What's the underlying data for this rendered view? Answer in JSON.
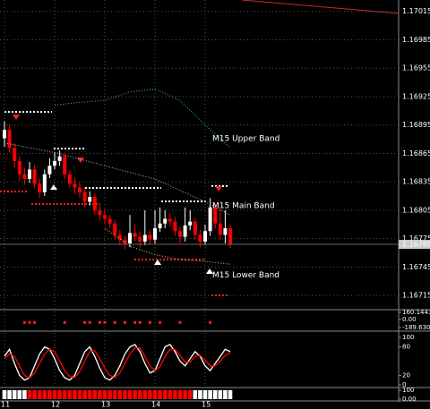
{
  "chart_data": [
    {
      "type": "candlestick",
      "categories": [
        "11",
        null,
        null,
        null,
        null,
        null,
        null,
        null,
        null,
        null,
        "12",
        null,
        null,
        null,
        null,
        null,
        null,
        null,
        null,
        null,
        "13",
        null,
        null,
        null,
        null,
        null,
        null,
        null,
        null,
        null,
        "14",
        null,
        null,
        null,
        null,
        null,
        null,
        null,
        null,
        null,
        "15",
        null,
        null,
        null,
        null,
        null
      ],
      "open": [
        1.16881,
        1.1689,
        1.16871,
        1.16857,
        1.16843,
        1.16838,
        1.16848,
        1.16833,
        1.16824,
        1.16843,
        1.16852,
        1.16857,
        1.16862,
        1.16843,
        1.16833,
        1.16829,
        1.16824,
        1.16814,
        1.16819,
        1.16805,
        1.168,
        1.16796,
        1.16791,
        1.16779,
        1.16774,
        1.1677,
        1.16781,
        1.16777,
        1.16772,
        1.16779,
        1.16774,
        1.16786,
        1.16791,
        1.16796,
        1.16793,
        1.16783,
        1.16777,
        1.16789,
        1.16793,
        1.16779,
        1.16772,
        1.16783,
        1.16808,
        1.16791,
        1.16779,
        1.16786
      ],
      "high": [
        1.16899,
        1.16896,
        1.16876,
        1.16862,
        1.1685,
        1.16856,
        1.16853,
        1.16838,
        1.16848,
        1.1686,
        1.16866,
        1.16868,
        1.16866,
        1.16847,
        1.1684,
        1.16834,
        1.16829,
        1.16825,
        1.16823,
        1.1681,
        1.16806,
        1.168,
        1.16795,
        1.16784,
        1.16778,
        1.168,
        1.1679,
        1.16782,
        1.16805,
        1.16784,
        1.16805,
        1.16808,
        1.16805,
        1.16802,
        1.16798,
        1.16788,
        1.16808,
        1.16805,
        1.16797,
        1.16784,
        1.1679,
        1.16818,
        1.16812,
        1.16806,
        1.16805,
        1.1679
      ],
      "low": [
        1.16872,
        1.16866,
        1.1685,
        1.16836,
        1.16832,
        1.16834,
        1.16828,
        1.16818,
        1.1682,
        1.16839,
        1.16848,
        1.16852,
        1.16838,
        1.16828,
        1.16822,
        1.16818,
        1.16808,
        1.1681,
        1.168,
        1.16794,
        1.1679,
        1.16786,
        1.16774,
        1.16768,
        1.16764,
        1.16766,
        1.16772,
        1.16766,
        1.16768,
        1.16769,
        1.1677,
        1.16782,
        1.16786,
        1.16788,
        1.16778,
        1.1677,
        1.16772,
        1.16784,
        1.16774,
        1.16766,
        1.16768,
        1.16778,
        1.16786,
        1.16774,
        1.1677,
        1.16765
      ],
      "close": [
        1.1689,
        1.16871,
        1.16857,
        1.16843,
        1.16838,
        1.16848,
        1.16833,
        1.16824,
        1.16843,
        1.16852,
        1.16857,
        1.16862,
        1.16843,
        1.16833,
        1.16829,
        1.16824,
        1.16814,
        1.16819,
        1.16805,
        1.168,
        1.16796,
        1.16791,
        1.16779,
        1.16774,
        1.1677,
        1.16781,
        1.16777,
        1.16772,
        1.16779,
        1.16774,
        1.16786,
        1.16791,
        1.16796,
        1.16793,
        1.16783,
        1.16777,
        1.16789,
        1.16793,
        1.16779,
        1.16772,
        1.16783,
        1.16808,
        1.16791,
        1.16779,
        1.16786,
        1.16769
      ],
      "up_color": "#ffffff",
      "down_color": "#ff0000",
      "series": [
        {
          "name": "M15 Upper Band",
          "color": "#3ab0c0",
          "x": [
            10,
            15,
            20,
            25,
            30,
            35,
            40,
            45
          ],
          "values": [
            1.16916,
            1.16919,
            1.16921,
            1.1693,
            1.16933,
            1.16921,
            1.16895,
            1.16871
          ]
        },
        {
          "name": "M15 Main Band",
          "color": "#bbbbbb",
          "x": [
            0,
            10,
            20,
            30,
            40,
            45
          ],
          "values": [
            1.16876,
            1.16866,
            1.16852,
            1.16838,
            1.16814,
            1.168
          ]
        },
        {
          "name": "M15 Lower Band",
          "color": "#e0d060",
          "x": [
            20,
            25,
            30,
            35,
            40,
            45
          ],
          "values": [
            1.16786,
            1.16767,
            1.16758,
            1.16753,
            1.16751,
            1.16748
          ]
        }
      ],
      "last_price": 1.16769,
      "ylim": [
        1.16701,
        1.17027
      ],
      "yticks": [
        1.17015,
        1.16985,
        1.16955,
        1.16925,
        1.16895,
        1.16865,
        1.16835,
        1.16805,
        1.16775,
        1.16745,
        1.16715
      ],
      "grid": true
    },
    {
      "type": "dots",
      "color": "#ff2020",
      "x": [
        4,
        5,
        6,
        12,
        16,
        17,
        19,
        20,
        22,
        24,
        26,
        27,
        29,
        31,
        35,
        41
      ],
      "values": [
        0,
        0,
        0,
        0,
        0,
        0,
        0,
        0,
        0,
        0,
        0,
        0,
        0,
        0,
        0,
        0
      ],
      "ylim": [
        -189.6308,
        160.1443
      ],
      "yticks": [
        160.1443,
        {
          "value": 0,
          "label": "0.00"
        },
        -189.6308
      ]
    },
    {
      "type": "line",
      "series": [
        {
          "color": "#ffffff",
          "values": [
            60,
            75,
            45,
            20,
            10,
            15,
            40,
            65,
            80,
            75,
            55,
            30,
            15,
            10,
            20,
            45,
            70,
            80,
            60,
            35,
            15,
            10,
            20,
            40,
            65,
            80,
            85,
            70,
            45,
            25,
            30,
            55,
            80,
            85,
            70,
            50,
            40,
            55,
            70,
            60,
            40,
            30,
            45,
            60,
            75,
            70
          ]
        },
        {
          "color": "#ff0000",
          "values": [
            55,
            65,
            60,
            40,
            20,
            15,
            25,
            45,
            65,
            75,
            70,
            50,
            30,
            18,
            15,
            28,
            50,
            70,
            72,
            55,
            35,
            20,
            15,
            25,
            45,
            65,
            78,
            78,
            60,
            40,
            30,
            38,
            60,
            75,
            75,
            62,
            48,
            48,
            60,
            62,
            52,
            40,
            40,
            50,
            62,
            68
          ]
        }
      ],
      "ylim": [
        0,
        100
      ],
      "yticks": [
        100,
        80,
        20,
        0
      ]
    },
    {
      "type": "bar",
      "values": [
        100,
        100,
        100,
        100,
        100,
        100,
        100,
        100,
        100,
        100,
        100,
        100,
        100,
        100,
        100,
        100,
        100,
        100,
        100,
        100,
        100,
        100,
        100,
        100,
        100,
        100,
        100,
        100,
        100,
        100,
        100,
        100,
        100,
        100,
        100,
        100,
        100,
        100,
        100,
        100,
        100,
        100,
        100,
        100,
        100,
        100
      ],
      "colors": [
        "#ffffff",
        "#ffffff",
        "#ffffff",
        "#ffffff",
        "#ffffff",
        "#ff0000",
        "#ff0000",
        "#ff0000",
        "#ff0000",
        "#ff0000",
        "#ff0000",
        "#ff0000",
        "#ff0000",
        "#ff0000",
        "#ff0000",
        "#ff0000",
        "#ff0000",
        "#ff0000",
        "#ff0000",
        "#ff0000",
        "#ff0000",
        "#ff0000",
        "#ff0000",
        "#ff0000",
        "#ff0000",
        "#ff0000",
        "#ff0000",
        "#ff0000",
        "#ff0000",
        "#ff0000",
        "#ff0000",
        "#ff0000",
        "#ff0000",
        "#ff0000",
        "#ff0000",
        "#ff0000",
        "#ff0000",
        "#ff0000",
        "#ffffff",
        "#ffffff",
        "#ffffff",
        "#ffffff",
        "#ffffff",
        "#ffffff",
        "#ffffff",
        "#ffffff"
      ],
      "ylim": [
        0,
        100
      ],
      "yticks": [
        100,
        {
          "value": 0,
          "label": "0.00"
        }
      ]
    }
  ]
}
